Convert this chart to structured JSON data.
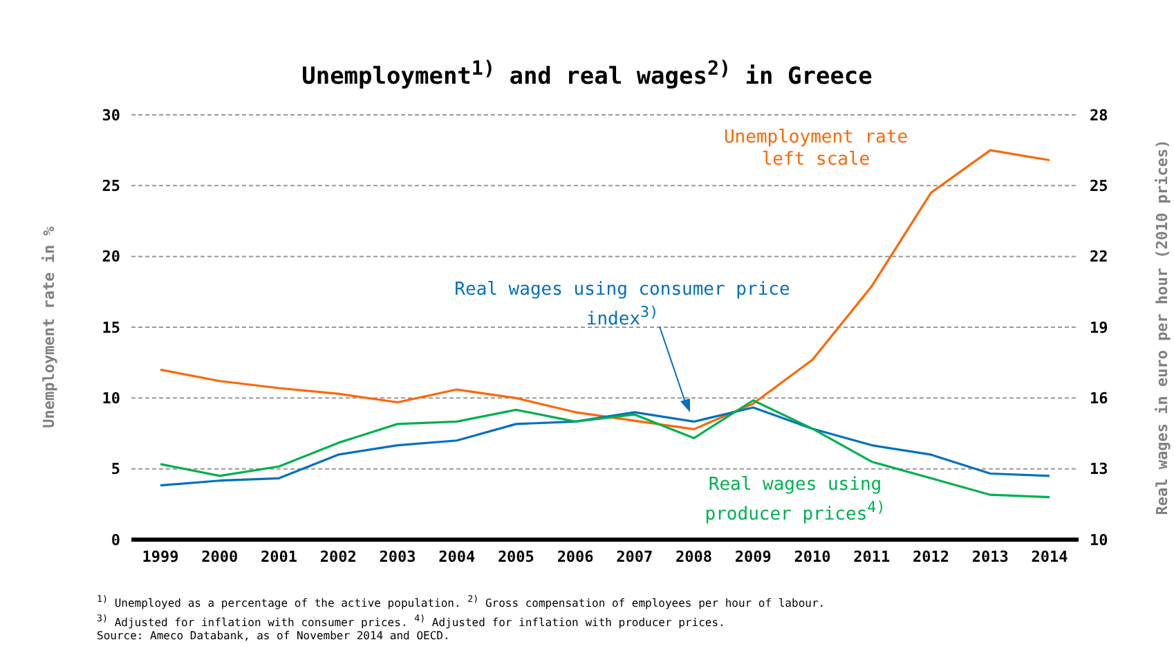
{
  "chart_data": {
    "type": "line",
    "title": "Unemployment$^{1)}$ and real wages$^{2)}$ in Greece",
    "ylabel": "Unemployment rate in %",
    "y2label": "Real wages in euro per hour (2010 prices)",
    "categories": [
      "1999",
      "2000",
      "2001",
      "2002",
      "2003",
      "2004",
      "2005",
      "2006",
      "2007",
      "2008",
      "2009",
      "2010",
      "2011",
      "2012",
      "2013",
      "2014"
    ],
    "series": [
      {
        "name": "Unemployment rate left scale",
        "color": "#ff6600",
        "values": [
          12.0,
          11.2,
          10.7,
          10.3,
          9.7,
          10.6,
          10.0,
          9.0,
          8.4,
          7.8,
          9.6,
          12.7,
          17.9,
          24.5,
          27.5,
          26.8
        ]
      },
      {
        "name": "Real wages using consumer price index$^{3)}$",
        "color": "#0070c0",
        "axis": "y2",
        "values": [
          12.3,
          12.5,
          12.6,
          13.6,
          14.0,
          14.2,
          14.9,
          15.0,
          15.4,
          15.0,
          15.6,
          14.7,
          14.0,
          13.6,
          12.8,
          12.7
        ]
      },
      {
        "name": "Real wages using producer prices$^{4)}$",
        "color": "#00b050",
        "axis": "y2",
        "values": [
          13.2,
          12.7,
          13.1,
          14.1,
          14.9,
          15.0,
          15.5,
          15.0,
          15.3,
          14.3,
          15.9,
          14.7,
          13.3,
          12.6,
          11.9,
          11.8
        ]
      }
    ],
    "ylim": [
      0,
      30
    ],
    "yticks": [
      0,
      5,
      10,
      15,
      20,
      25,
      30
    ],
    "y2lim": [
      10,
      28
    ],
    "y2ticks": [
      10,
      13,
      16,
      19,
      22,
      25,
      28
    ],
    "grid": "y",
    "legend": false,
    "marker": "none",
    "line_style": "solid",
    "annotations": [
      "$^{1)}$ Unemployed as a percentage of the active population. $^{2)}$ Gross compensation of employees per hour of labour.",
      "$^{3)}$ Adjusted for inflation with consumer prices. $^{4)}$ Adjusted for inflation with producer prices.",
      "Source: Ameco Databank, as of November 2014 and OECD."
    ]
  }
}
